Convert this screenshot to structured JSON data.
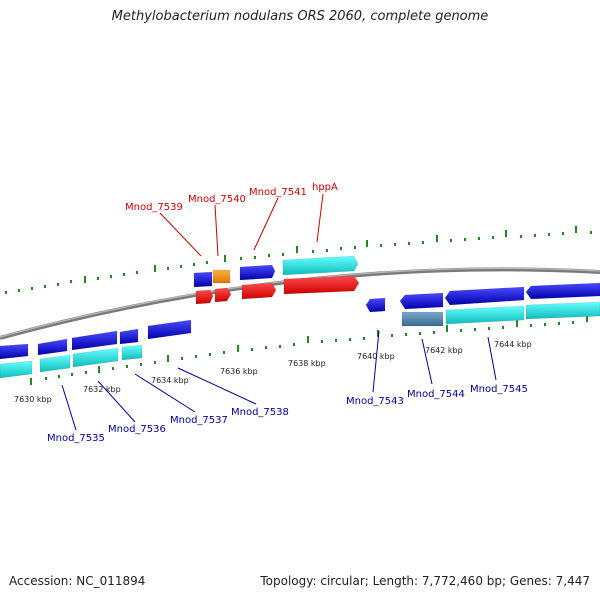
{
  "title": "Methylobacterium nodulans ORS 2060, complete genome",
  "footer": {
    "accession": "Accession: NC_011894",
    "topology": "Topology: circular; Length: 7,772,460 bp; Genes: 7,447"
  },
  "scale_labels": [
    "7630 kbp",
    "7632 kbp",
    "7634 kbp",
    "7636 kbp",
    "7638 kbp",
    "7640 kbp",
    "7642 kbp",
    "7644 kbp"
  ],
  "gene_labels": {
    "top": [
      "Mnod_7539",
      "Mnod_7540",
      "Mnod_7541",
      "hppA"
    ],
    "bottom": [
      "Mnod_7535",
      "Mnod_7536",
      "Mnod_7537",
      "Mnod_7538",
      "Mnod_7543",
      "Mnod_7544",
      "Mnod_7545"
    ]
  },
  "colors": {
    "cds_blue": "#1a1acc",
    "gene_cyan": "#22dddd",
    "rna_red": "#ee1111",
    "highlight_orange": "#ee9922",
    "steel": "#5588aa",
    "tick_green": "#228822",
    "label_red": "#cc0000",
    "label_blue": "#000099",
    "backbone": "#888888"
  }
}
